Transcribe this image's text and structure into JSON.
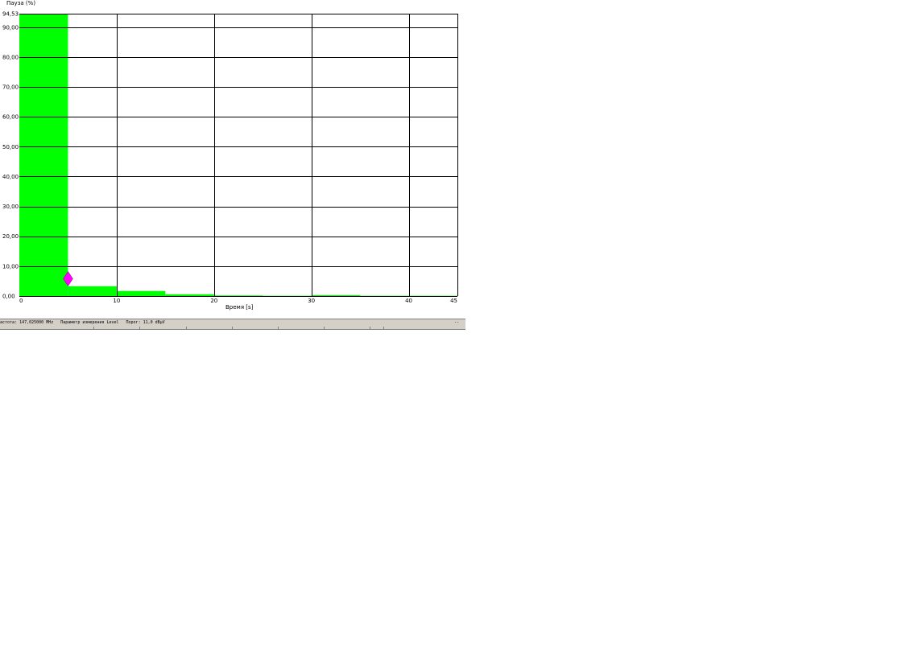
{
  "chart_data": {
    "type": "bar",
    "ylabel": "Пауза (%)",
    "xlabel": "Время [s]",
    "xlim": [
      0,
      45
    ],
    "ylim": [
      0,
      94.53
    ],
    "x_ticks": [
      "0",
      "10",
      "20",
      "30",
      "40",
      "45"
    ],
    "y_ticks": [
      "0,00",
      "10,00",
      "20,00",
      "30,00",
      "40,00",
      "50,00",
      "60,00",
      "70,00",
      "80,00",
      "90,00",
      "94,53"
    ],
    "bin_width": 5,
    "bins": [
      {
        "x_start": 0,
        "x_end": 5,
        "value": 94.53
      },
      {
        "x_start": 5,
        "x_end": 10,
        "value": 3.3
      },
      {
        "x_start": 10,
        "x_end": 15,
        "value": 1.7
      },
      {
        "x_start": 15,
        "x_end": 20,
        "value": 0.6
      },
      {
        "x_start": 20,
        "x_end": 25,
        "value": 0.2
      },
      {
        "x_start": 25,
        "x_end": 30,
        "value": 0.1
      },
      {
        "x_start": 30,
        "x_end": 35,
        "value": 0.3
      },
      {
        "x_start": 35,
        "x_end": 40,
        "value": 0.1
      },
      {
        "x_start": 40,
        "x_end": 45,
        "value": 0.1
      }
    ],
    "marker": {
      "x": 5,
      "y": 5.8
    },
    "grid": true,
    "colors": {
      "bar": "#00ff00",
      "marker": "#ff00ff",
      "grid": "#000000"
    }
  },
  "status": {
    "frequency": "астота: 147,025000 MHz",
    "parameter": "Параметр измерения Level",
    "threshold": "Порог: 11,0 dBµV",
    "right_mark": "--"
  }
}
